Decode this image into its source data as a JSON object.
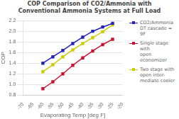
{
  "chart_data": {
    "type": "line",
    "title": "COP Comparison of CO2/Ammonia with\nConventional Ammonia Systems at Full Load",
    "xlabel": "Evaporating Temp [deg F]",
    "ylabel": "COP",
    "x": [
      -60,
      -55,
      -50,
      -45,
      -40,
      -35,
      -30,
      -25
    ],
    "series": [
      {
        "name": "CO2/Ammonia\nDT cascade = 9F",
        "color": "#2222bb",
        "marker": "square",
        "values": [
          1.4,
          1.52,
          1.64,
          1.77,
          1.89,
          2.0,
          2.08,
          2.15
        ]
      },
      {
        "name": "Single stage with\nopen economizer",
        "color": "#cc1133",
        "marker": "square",
        "values": [
          0.92,
          1.05,
          1.2,
          1.36,
          1.5,
          1.63,
          1.75,
          1.85
        ]
      },
      {
        "name": "Two stage with\nopen inter-\nmediate cooler",
        "color": "#cccc00",
        "marker": "square",
        "values": [
          1.24,
          1.37,
          1.52,
          1.65,
          1.77,
          1.88,
          1.99,
          2.12
        ]
      }
    ],
    "xlim": [
      -70,
      -20
    ],
    "xticks": [
      -70,
      -65,
      -60,
      -55,
      -50,
      -45,
      -40,
      -35,
      -30,
      -25,
      -20
    ],
    "ylim": [
      0.8,
      2.2
    ],
    "yticks": [
      0.8,
      {
        "value": 1,
        "label": "1.0"
      },
      1.2,
      1.4,
      1.6,
      1.8,
      {
        "value": 2,
        "label": "2.0"
      },
      2.2
    ],
    "grid": "y",
    "legend": "right"
  }
}
